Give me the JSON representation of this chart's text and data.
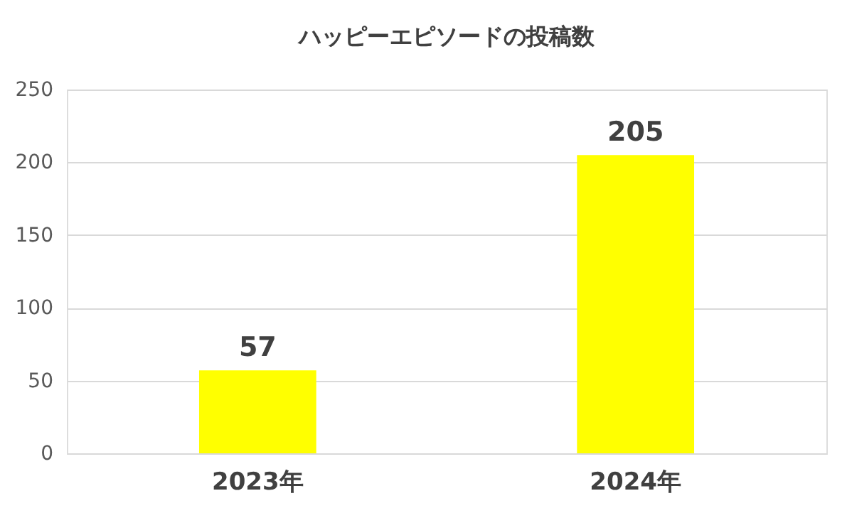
{
  "chart_data": {
    "type": "bar",
    "title": "ハッピーエピソードの投稿数",
    "categories": [
      "2023年",
      "2024年"
    ],
    "values": [
      57,
      205
    ],
    "color": "#ffff00",
    "ylim": [
      0,
      250
    ],
    "yticks": [
      0,
      50,
      100,
      150,
      200,
      250
    ],
    "grid": "y",
    "data_labels": true
  }
}
